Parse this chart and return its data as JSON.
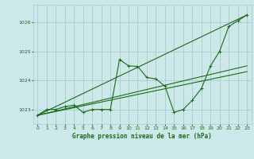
{
  "background_color": "#cce8e8",
  "grid_color": "#aacccc",
  "line_color": "#1a6b1a",
  "title": "Graphe pression niveau de la mer (hPa)",
  "xlim": [
    -0.5,
    23.5
  ],
  "ylim": [
    1022.5,
    1026.6
  ],
  "yticks": [
    1023,
    1024,
    1025,
    1026
  ],
  "xticks": [
    0,
    1,
    2,
    3,
    4,
    5,
    6,
    7,
    8,
    9,
    10,
    11,
    12,
    13,
    14,
    15,
    16,
    17,
    18,
    19,
    20,
    21,
    22,
    23
  ],
  "series": [
    {
      "x": [
        0,
        1,
        2,
        3,
        4,
        5,
        6,
        7,
        8,
        9,
        10,
        11,
        12,
        13,
        14,
        15,
        16,
        17,
        18,
        19,
        20,
        21,
        22,
        23
      ],
      "y": [
        1022.8,
        1023.0,
        1023.0,
        1023.1,
        1023.15,
        1022.9,
        1023.0,
        1023.0,
        1023.0,
        1024.72,
        1024.5,
        1024.48,
        1024.1,
        1024.05,
        1023.8,
        1022.9,
        1023.0,
        1023.32,
        1023.72,
        1024.5,
        1025.0,
        1025.85,
        1026.05,
        1026.25
      ],
      "marker": "+"
    },
    {
      "x": [
        0,
        23
      ],
      "y": [
        1022.8,
        1026.25
      ],
      "marker": null
    },
    {
      "x": [
        0,
        23
      ],
      "y": [
        1022.8,
        1024.5
      ],
      "marker": null
    },
    {
      "x": [
        0,
        23
      ],
      "y": [
        1022.8,
        1024.3
      ],
      "marker": null
    }
  ],
  "title_fontsize": 5.5,
  "tick_fontsize": 4.5,
  "linewidth": 0.8,
  "markersize": 3.0
}
